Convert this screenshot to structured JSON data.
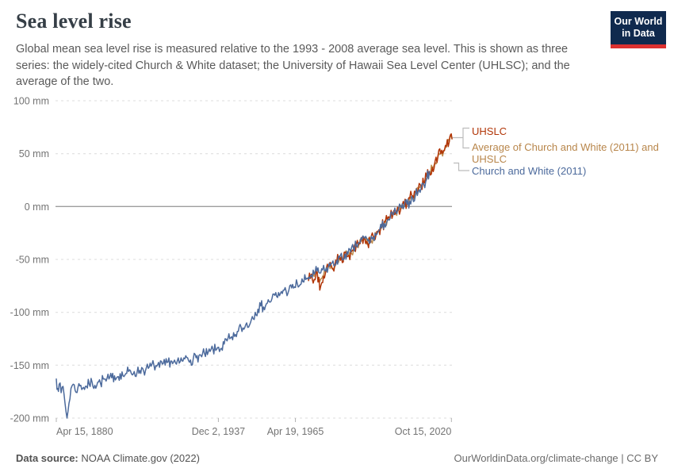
{
  "header": {
    "title": "Sea level rise",
    "subtitle": "Global mean sea level rise is measured relative to the 1993 - 2008 average sea level. This is shown as three series: the widely-cited Church & White dataset; the University of Hawaii Sea Level Center (UHLSC); and the average of the two.",
    "logo": {
      "line1": "Our World",
      "line2": "in Data",
      "bg": "#102a4e",
      "accent": "#dc3130"
    }
  },
  "chart_data": {
    "type": "line",
    "title": "Sea level rise",
    "xlabel": "",
    "ylabel": "",
    "unit": "mm",
    "grid": "dashed-horizontal",
    "legend_position": "right",
    "xlim": [
      1880.29,
      2021.0
    ],
    "ylim": [
      -200,
      100
    ],
    "baseline_note": "0 mm = 1993 - 2008 average sea level",
    "y_ticks": [
      {
        "value": 100,
        "label": "100 mm"
      },
      {
        "value": 50,
        "label": "50 mm"
      },
      {
        "value": 0,
        "label": "0 mm"
      },
      {
        "value": -50,
        "label": "-50 mm"
      },
      {
        "value": -100,
        "label": "-100 mm"
      },
      {
        "value": -150,
        "label": "-150 mm"
      },
      {
        "value": -200,
        "label": "-200 mm"
      }
    ],
    "x_ticks": [
      {
        "year": 1880.29,
        "label": "Apr 15, 1880",
        "align": "start"
      },
      {
        "year": 1937.92,
        "label": "Dec 2, 1937",
        "align": "middle"
      },
      {
        "year": 1965.3,
        "label": "Apr 19, 1965",
        "align": "middle"
      },
      {
        "year": 2020.79,
        "label": "Oct 15, 2020",
        "align": "end"
      }
    ],
    "legend": [
      {
        "label": "UHSLC",
        "color": "#b13507"
      },
      {
        "label": "Average of Church and White (2011) and UHSLC",
        "color": "#b8864b"
      },
      {
        "label": "Church and White (2011)",
        "color": "#4c6a9c"
      }
    ],
    "series": [
      {
        "name": "Average of Church and White (2011) and UHSLC",
        "color": "#bf8b4b",
        "jitter": 4.5,
        "points": [
          [
            1970,
            -68
          ],
          [
            1971,
            -64
          ],
          [
            1972,
            -66
          ],
          [
            1973,
            -61
          ],
          [
            1974,
            -71
          ],
          [
            1975,
            -66
          ],
          [
            1976,
            -62
          ],
          [
            1977,
            -57
          ],
          [
            1978,
            -55
          ],
          [
            1979,
            -58
          ],
          [
            1980,
            -52
          ],
          [
            1981,
            -48
          ],
          [
            1982,
            -51
          ],
          [
            1983,
            -44
          ],
          [
            1984,
            -46
          ],
          [
            1985,
            -43
          ],
          [
            1986,
            -41
          ],
          [
            1987,
            -37
          ],
          [
            1988,
            -35
          ],
          [
            1989,
            -30
          ],
          [
            1990,
            -31
          ],
          [
            1991,
            -33
          ],
          [
            1992,
            -33
          ],
          [
            1993,
            -29
          ],
          [
            1994,
            -27
          ],
          [
            1995,
            -23
          ],
          [
            1996,
            -20
          ],
          [
            1997,
            -15
          ],
          [
            1998,
            -13
          ],
          [
            1999,
            -10
          ],
          [
            2000,
            -8
          ],
          [
            2001,
            -5
          ],
          [
            2002,
            -3
          ],
          [
            2003,
            0
          ],
          [
            2004,
            1
          ],
          [
            2005,
            3
          ],
          [
            2006,
            7
          ],
          [
            2007,
            9
          ],
          [
            2008,
            12
          ],
          [
            2009,
            15
          ],
          [
            2010,
            18
          ],
          [
            2011,
            22
          ],
          [
            2012,
            27
          ],
          [
            2013,
            33
          ],
          [
            2014,
            37
          ],
          [
            2015,
            42
          ],
          [
            2016,
            47
          ],
          [
            2017,
            50
          ],
          [
            2018,
            52
          ],
          [
            2019,
            56
          ],
          [
            2020,
            61
          ],
          [
            2020.5,
            67
          ],
          [
            2021,
            64
          ]
        ]
      },
      {
        "name": "UHSLC",
        "color": "#b13507",
        "jitter": 6,
        "points": [
          [
            1970,
            -70
          ],
          [
            1971,
            -64
          ],
          [
            1972,
            -69
          ],
          [
            1973,
            -60
          ],
          [
            1974,
            -79
          ],
          [
            1975,
            -72
          ],
          [
            1976,
            -63
          ],
          [
            1977,
            -57
          ],
          [
            1978,
            -55
          ],
          [
            1979,
            -61
          ],
          [
            1980,
            -53
          ],
          [
            1981,
            -47
          ],
          [
            1982,
            -53
          ],
          [
            1983,
            -43
          ],
          [
            1984,
            -47
          ],
          [
            1985,
            -43
          ],
          [
            1986,
            -41
          ],
          [
            1987,
            -36
          ],
          [
            1988,
            -35
          ],
          [
            1989,
            -29
          ],
          [
            1990,
            -31
          ],
          [
            1991,
            -35
          ],
          [
            1992,
            -34
          ],
          [
            1993,
            -28
          ],
          [
            1994,
            -27
          ],
          [
            1995,
            -22
          ],
          [
            1996,
            -20
          ],
          [
            1997,
            -14
          ],
          [
            1998,
            -13
          ],
          [
            1999,
            -10
          ],
          [
            2000,
            -8
          ],
          [
            2001,
            -5
          ],
          [
            2002,
            -2
          ],
          [
            2003,
            0
          ],
          [
            2004,
            2
          ],
          [
            2005,
            4
          ],
          [
            2006,
            8
          ],
          [
            2007,
            10
          ],
          [
            2008,
            13
          ],
          [
            2009,
            15
          ],
          [
            2010,
            19
          ],
          [
            2011,
            22
          ],
          [
            2012,
            28
          ],
          [
            2013,
            33
          ],
          [
            2014,
            37
          ],
          [
            2015,
            43
          ],
          [
            2016,
            48
          ],
          [
            2017,
            50
          ],
          [
            2018,
            53
          ],
          [
            2019,
            57
          ],
          [
            2020,
            61
          ],
          [
            2020.5,
            68
          ],
          [
            2021,
            64
          ]
        ]
      },
      {
        "name": "Church and White (2011)",
        "color": "#4c6a9c",
        "jitter": 5.5,
        "points": [
          [
            1880.3,
            -163
          ],
          [
            1880.8,
            -172
          ],
          [
            1881.3,
            -168
          ],
          [
            1882,
            -176
          ],
          [
            1882.7,
            -170
          ],
          [
            1883.4,
            -186
          ],
          [
            1884.1,
            -200
          ],
          [
            1884.8,
            -186
          ],
          [
            1885.5,
            -172
          ],
          [
            1886.3,
            -168
          ],
          [
            1887,
            -174
          ],
          [
            1888,
            -171
          ],
          [
            1889,
            -169
          ],
          [
            1890,
            -171
          ],
          [
            1891,
            -170
          ],
          [
            1892,
            -168
          ],
          [
            1893,
            -166
          ],
          [
            1894,
            -169
          ],
          [
            1895,
            -166
          ],
          [
            1896,
            -167
          ],
          [
            1897,
            -163
          ],
          [
            1898,
            -165
          ],
          [
            1899,
            -163
          ],
          [
            1900,
            -162
          ],
          [
            1901,
            -160
          ],
          [
            1902,
            -161
          ],
          [
            1903,
            -158
          ],
          [
            1904,
            -160
          ],
          [
            1905,
            -158
          ],
          [
            1906,
            -156
          ],
          [
            1907,
            -158
          ],
          [
            1908,
            -156
          ],
          [
            1909,
            -157
          ],
          [
            1910,
            -155
          ],
          [
            1911,
            -153
          ],
          [
            1912,
            -155
          ],
          [
            1913,
            -153
          ],
          [
            1914,
            -151
          ],
          [
            1915,
            -150
          ],
          [
            1916,
            -151
          ],
          [
            1917,
            -152
          ],
          [
            1918,
            -149
          ],
          [
            1919,
            -150
          ],
          [
            1920,
            -147
          ],
          [
            1921,
            -146
          ],
          [
            1922,
            -147
          ],
          [
            1923,
            -149
          ],
          [
            1924,
            -148
          ],
          [
            1925,
            -146
          ],
          [
            1926,
            -144
          ],
          [
            1927,
            -143
          ],
          [
            1928,
            -145
          ],
          [
            1929,
            -144
          ],
          [
            1930,
            -143
          ],
          [
            1931,
            -141
          ],
          [
            1932,
            -142
          ],
          [
            1933,
            -139
          ],
          [
            1934,
            -140
          ],
          [
            1935,
            -137
          ],
          [
            1936,
            -135
          ],
          [
            1937,
            -136
          ],
          [
            1938,
            -133
          ],
          [
            1939,
            -134
          ],
          [
            1940,
            -130
          ],
          [
            1941,
            -127
          ],
          [
            1942,
            -125
          ],
          [
            1943,
            -126
          ],
          [
            1944,
            -121
          ],
          [
            1945,
            -118
          ],
          [
            1946,
            -114
          ],
          [
            1947,
            -116
          ],
          [
            1948,
            -110
          ],
          [
            1949,
            -112
          ],
          [
            1950,
            -104
          ],
          [
            1951,
            -100
          ],
          [
            1952,
            -97
          ],
          [
            1953,
            -94
          ],
          [
            1954,
            -95
          ],
          [
            1955,
            -92
          ],
          [
            1956,
            -90
          ],
          [
            1957,
            -87
          ],
          [
            1958,
            -84
          ],
          [
            1959,
            -86
          ],
          [
            1960,
            -82
          ],
          [
            1961,
            -79
          ],
          [
            1962,
            -80
          ],
          [
            1963,
            -79
          ],
          [
            1964,
            -77
          ],
          [
            1965,
            -76
          ],
          [
            1966,
            -73
          ],
          [
            1967,
            -74
          ],
          [
            1968,
            -71
          ],
          [
            1969,
            -69
          ],
          [
            1970,
            -67
          ],
          [
            1971,
            -65
          ],
          [
            1972,
            -64
          ],
          [
            1973,
            -61
          ],
          [
            1974,
            -63
          ],
          [
            1975,
            -60
          ],
          [
            1976,
            -61
          ],
          [
            1977,
            -57
          ],
          [
            1978,
            -54
          ],
          [
            1979,
            -56
          ],
          [
            1980,
            -51
          ],
          [
            1981,
            -48
          ],
          [
            1982,
            -50
          ],
          [
            1983,
            -45
          ],
          [
            1984,
            -45
          ],
          [
            1985,
            -43
          ],
          [
            1986,
            -40
          ],
          [
            1987,
            -37
          ],
          [
            1988,
            -34
          ],
          [
            1989,
            -31
          ],
          [
            1990,
            -30
          ],
          [
            1991,
            -32
          ],
          [
            1992,
            -33
          ],
          [
            1993,
            -29
          ],
          [
            1994,
            -27
          ],
          [
            1995,
            -23
          ],
          [
            1996,
            -20
          ],
          [
            1997,
            -16
          ],
          [
            1998,
            -13
          ],
          [
            1999,
            -11
          ],
          [
            2000,
            -8
          ],
          [
            2001,
            -5
          ],
          [
            2002,
            -3
          ],
          [
            2003,
            -1
          ],
          [
            2004,
            0
          ],
          [
            2005,
            2
          ],
          [
            2006,
            5
          ],
          [
            2007,
            8
          ],
          [
            2008,
            11
          ],
          [
            2009,
            14
          ],
          [
            2010,
            17
          ],
          [
            2011,
            21
          ],
          [
            2012,
            26
          ],
          [
            2013,
            33
          ]
        ]
      }
    ]
  },
  "footer": {
    "source_label": "Data source:",
    "source_value": " NOAA Climate.gov (2022)",
    "attribution": "OurWorldinData.org/climate-change | CC BY"
  }
}
